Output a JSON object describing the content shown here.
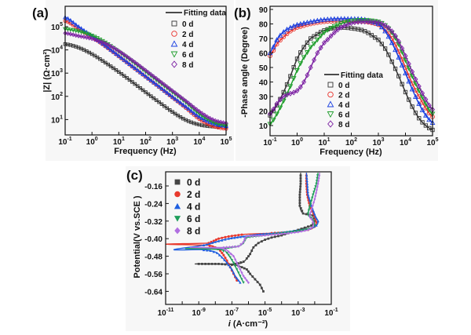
{
  "chart_data": [
    {
      "id": "a",
      "type": "scatter",
      "panel_label": "(a)",
      "title": "",
      "xlabel": "Frequency (Hz)",
      "ylabel": "|Z| (Ω·cm²)",
      "xscale": "log",
      "yscale": "log",
      "xlim_log10": [
        -1,
        5
      ],
      "ylim_log10": [
        0.35,
        5.9
      ],
      "xticks": [
        "10^-1",
        "10^0",
        "10^1",
        "10^2",
        "10^3",
        "10^4",
        "10^5"
      ],
      "yticks": [
        "10^1",
        "10^2",
        "10^3",
        "10^4",
        "10^5"
      ],
      "legend": {
        "position": "top-right",
        "fit_label": "Fitting data"
      },
      "series": [
        {
          "name": "0 d",
          "color": "#333333",
          "marker": "square",
          "log10_x": [
            -1,
            -0.5,
            0,
            0.5,
            1,
            1.5,
            2,
            2.5,
            3,
            3.5,
            4,
            4.5,
            5
          ],
          "log10_y": [
            4.25,
            4.1,
            3.82,
            3.45,
            3.05,
            2.62,
            2.18,
            1.75,
            1.33,
            0.98,
            0.78,
            0.7,
            0.68
          ]
        },
        {
          "name": "2 d",
          "color": "#e8302a",
          "marker": "circle",
          "log10_x": [
            -1,
            -0.5,
            0,
            0.5,
            1,
            1.5,
            2,
            2.5,
            3,
            3.5,
            4,
            4.5,
            5
          ],
          "log10_y": [
            5.25,
            4.9,
            4.55,
            4.15,
            3.72,
            3.28,
            2.84,
            2.4,
            1.95,
            1.5,
            1.02,
            0.72,
            0.6
          ]
        },
        {
          "name": "4 d",
          "color": "#1a3fe0",
          "marker": "triangle-up",
          "log10_x": [
            -1,
            -0.5,
            0,
            0.5,
            1,
            1.5,
            2,
            2.5,
            3,
            3.5,
            4,
            4.5,
            5
          ],
          "log10_y": [
            5.4,
            5.0,
            4.6,
            4.18,
            3.74,
            3.3,
            2.86,
            2.42,
            1.98,
            1.55,
            1.12,
            0.84,
            0.72
          ]
        },
        {
          "name": "6 d",
          "color": "#1f9e2c",
          "marker": "triangle-down",
          "log10_x": [
            -1,
            -0.5,
            0,
            0.5,
            1,
            1.5,
            2,
            2.5,
            3,
            3.5,
            4,
            4.5,
            5
          ],
          "log10_y": [
            4.9,
            4.8,
            4.62,
            4.32,
            3.92,
            3.5,
            3.06,
            2.62,
            2.18,
            1.74,
            1.25,
            0.9,
            0.75
          ]
        },
        {
          "name": "8 d",
          "color": "#7b1fa2",
          "marker": "diamond",
          "log10_x": [
            -1,
            -0.5,
            0,
            0.5,
            1,
            1.5,
            2,
            2.5,
            3,
            3.5,
            4,
            4.5,
            5
          ],
          "log10_y": [
            4.72,
            4.6,
            4.48,
            4.28,
            3.95,
            3.55,
            3.12,
            2.68,
            2.24,
            1.8,
            1.35,
            1.0,
            0.85
          ]
        }
      ]
    },
    {
      "id": "b",
      "type": "scatter",
      "panel_label": "(b)",
      "title": "",
      "xlabel": "Frequency (Hz)",
      "ylabel": "-Phase angle (Degree)",
      "xscale": "log",
      "xlim_log10": [
        -1,
        5
      ],
      "ylim": [
        3,
        92
      ],
      "xticks": [
        "10^-1",
        "10^0",
        "10^1",
        "10^2",
        "10^3",
        "10^4",
        "10^5"
      ],
      "yticks": [
        "10",
        "20",
        "30",
        "40",
        "50",
        "60",
        "70",
        "80",
        "90"
      ],
      "legend": {
        "position": "center-right",
        "fit_label": "Fitting data"
      },
      "series": [
        {
          "name": "0 d",
          "color": "#333333",
          "marker": "square",
          "log10_x": [
            -1,
            -0.75,
            -0.5,
            -0.25,
            0,
            0.25,
            0.5,
            1,
            1.5,
            2,
            2.5,
            3,
            3.25,
            3.5,
            3.75,
            4,
            4.25,
            4.5,
            4.75,
            5
          ],
          "y": [
            17,
            24,
            33,
            44,
            56,
            64,
            70,
            75.5,
            77.5,
            77,
            75,
            69,
            63,
            54,
            44,
            33,
            23,
            15,
            10,
            7
          ]
        },
        {
          "name": "2 d",
          "color": "#e8302a",
          "marker": "circle",
          "log10_x": [
            -1,
            -0.75,
            -0.5,
            -0.25,
            0,
            0.5,
            1,
            1.5,
            2,
            2.5,
            3,
            3.25,
            3.5,
            3.75,
            4,
            4.25,
            4.5,
            4.75,
            5
          ],
          "y": [
            58,
            66,
            71,
            75,
            77.5,
            80,
            81.5,
            82,
            82,
            81.5,
            79.5,
            76,
            70,
            61,
            50,
            39,
            30,
            22,
            16
          ]
        },
        {
          "name": "4 d",
          "color": "#1a3fe0",
          "marker": "triangle-up",
          "log10_x": [
            -1,
            -0.75,
            -0.5,
            -0.25,
            0,
            0.5,
            1,
            1.5,
            2,
            2.5,
            3,
            3.25,
            3.5,
            3.75,
            4,
            4.25,
            4.5,
            4.75,
            5
          ],
          "y": [
            60,
            69,
            74.5,
            77.5,
            79.5,
            81.5,
            83,
            83.5,
            83.5,
            83,
            80,
            75,
            67,
            57,
            46,
            35,
            25,
            17,
            12
          ]
        },
        {
          "name": "6 d",
          "color": "#1f9e2c",
          "marker": "triangle-down",
          "log10_x": [
            -1,
            -0.75,
            -0.5,
            -0.25,
            0,
            0.25,
            0.5,
            1,
            1.5,
            2,
            2.5,
            3,
            3.25,
            3.5,
            3.75,
            4,
            4.25,
            4.5,
            4.75,
            5
          ],
          "y": [
            11,
            18,
            27,
            37,
            48,
            57,
            64,
            74,
            79.5,
            82,
            82.5,
            81.5,
            79,
            74,
            66,
            55,
            44,
            34,
            25,
            18
          ]
        },
        {
          "name": "8 d",
          "color": "#7b1fa2",
          "marker": "diamond",
          "log10_x": [
            -1,
            -0.75,
            -0.5,
            -0.25,
            0,
            0.25,
            0.5,
            0.75,
            1,
            1.5,
            2,
            2.5,
            3,
            3.25,
            3.5,
            3.75,
            4,
            4.25,
            4.5,
            4.75,
            5
          ],
          "y": [
            18,
            25,
            30,
            32,
            34,
            40,
            50,
            60,
            67,
            76,
            80.5,
            81.5,
            81,
            79,
            75,
            68,
            58,
            47,
            37,
            28,
            21
          ]
        }
      ]
    },
    {
      "id": "c",
      "type": "line",
      "panel_label": "(c)",
      "title": "",
      "xlabel": "i (A·cm⁻²)",
      "xlabel_italic": "i",
      "xlabel_rest": " (A·cm⁻²)",
      "ylabel": "Potential(V vs.SCE )",
      "xscale": "log",
      "xlim_log10": [
        -11,
        -1
      ],
      "ylim": [
        -0.705,
        -0.095
      ],
      "xticks": [
        "10^-11",
        "10^-9",
        "10^-7",
        "10^-5",
        "10^-3",
        "10^-1"
      ],
      "yticks": [
        "-0.16",
        "-0.24",
        "-0.32",
        "-0.40",
        "-0.48",
        "-0.56",
        "-0.64"
      ],
      "legend": {
        "position": "top-left"
      },
      "series": [
        {
          "name": "0 d",
          "color": "#444444",
          "marker": "square",
          "log10_i": [
            -5.1,
            -5.3,
            -5.6,
            -5.9,
            -6.1,
            -6.4,
            -6.8,
            -7.8,
            -9.2,
            -6.8,
            -6.3,
            -6.1,
            -5.9,
            -5.7,
            -5.4,
            -5.0,
            -4.6,
            -4.0,
            -3.4,
            -2.8,
            -2.2,
            -2.0,
            -2.1,
            -2.7,
            -2.9,
            -2.9,
            -2.85,
            -2.85
          ],
          "E": [
            -0.64,
            -0.61,
            -0.585,
            -0.56,
            -0.54,
            -0.53,
            -0.52,
            -0.515,
            -0.515,
            -0.515,
            -0.505,
            -0.49,
            -0.47,
            -0.44,
            -0.42,
            -0.405,
            -0.395,
            -0.385,
            -0.37,
            -0.355,
            -0.34,
            -0.32,
            -0.295,
            -0.285,
            -0.25,
            -0.2,
            -0.15,
            -0.1
          ]
        },
        {
          "name": "2 d",
          "color": "#e83a2e",
          "marker": "circle",
          "log10_i": [
            -6.7,
            -6.9,
            -7.1,
            -7.3,
            -7.5,
            -7.7,
            -8.0,
            -8.5,
            -11,
            -8.4,
            -8.1,
            -7.8,
            -7.2,
            -6.2,
            -4.6,
            -3.4,
            -2.4,
            -2.0,
            -1.9,
            -2.0,
            -2.3,
            -2.45,
            -2.5,
            -2.5
          ],
          "E": [
            -0.59,
            -0.56,
            -0.53,
            -0.5,
            -0.475,
            -0.455,
            -0.44,
            -0.43,
            -0.425,
            -0.42,
            -0.41,
            -0.4,
            -0.39,
            -0.38,
            -0.375,
            -0.37,
            -0.36,
            -0.345,
            -0.325,
            -0.3,
            -0.25,
            -0.2,
            -0.15,
            -0.1
          ]
        },
        {
          "name": "4 d",
          "color": "#1f5fe0",
          "marker": "triangle-up",
          "log10_i": [
            -6.5,
            -6.8,
            -7.0,
            -7.3,
            -7.6,
            -7.9,
            -8.3,
            -8.9,
            -10.5,
            -8.7,
            -8.0,
            -7.2,
            -6.3,
            -5.3,
            -4.3,
            -3.3,
            -2.3,
            -1.9,
            -1.8,
            -1.95,
            -2.2,
            -2.4,
            -2.45,
            -2.5
          ],
          "E": [
            -0.6,
            -0.57,
            -0.54,
            -0.51,
            -0.485,
            -0.465,
            -0.455,
            -0.45,
            -0.45,
            -0.43,
            -0.415,
            -0.4,
            -0.39,
            -0.38,
            -0.375,
            -0.365,
            -0.355,
            -0.34,
            -0.32,
            -0.3,
            -0.25,
            -0.2,
            -0.15,
            -0.1
          ]
        },
        {
          "name": "6 d",
          "color": "#1f9e5a",
          "marker": "triangle-down",
          "log10_i": [
            -6.3,
            -6.5,
            -6.7,
            -6.9,
            -7.1,
            -7.3,
            -7.7,
            -9.8,
            -7.6,
            -7.0,
            -6.6,
            -6.3,
            -6.1,
            -5.0,
            -4.0,
            -3.0,
            -2.3,
            -2.0,
            -2.05,
            -2.2,
            -2.4,
            -2.1,
            -1.9,
            -1.8
          ],
          "E": [
            -0.6,
            -0.57,
            -0.54,
            -0.51,
            -0.485,
            -0.465,
            -0.45,
            -0.445,
            -0.445,
            -0.44,
            -0.435,
            -0.42,
            -0.395,
            -0.385,
            -0.375,
            -0.365,
            -0.355,
            -0.34,
            -0.325,
            -0.305,
            -0.285,
            -0.2,
            -0.15,
            -0.1
          ]
        },
        {
          "name": "8 d",
          "color": "#b06fe0",
          "marker": "diamond",
          "log10_i": [
            -6.0,
            -6.3,
            -6.5,
            -6.7,
            -6.9,
            -7.2,
            -7.6,
            -9.5,
            -7.5,
            -6.6,
            -6.3,
            -6.1,
            -5.0,
            -4.0,
            -3.0,
            -2.4,
            -2.1,
            -2.1,
            -2.2,
            -2.3,
            -2.0,
            -1.8,
            -1.7
          ],
          "E": [
            -0.6,
            -0.57,
            -0.54,
            -0.51,
            -0.48,
            -0.46,
            -0.445,
            -0.44,
            -0.44,
            -0.435,
            -0.415,
            -0.39,
            -0.385,
            -0.378,
            -0.37,
            -0.36,
            -0.345,
            -0.325,
            -0.31,
            -0.295,
            -0.22,
            -0.15,
            -0.1
          ]
        }
      ]
    }
  ]
}
